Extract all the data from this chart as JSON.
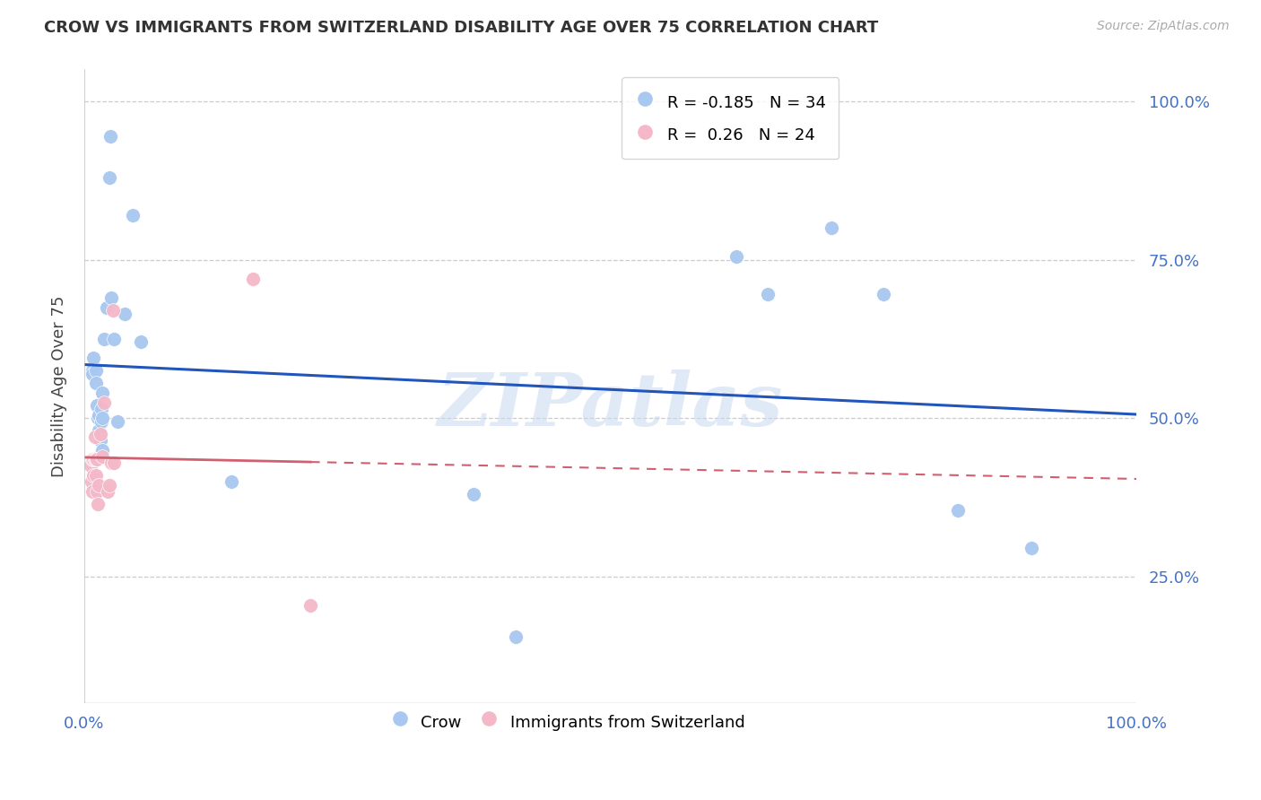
{
  "title": "CROW VS IMMIGRANTS FROM SWITZERLAND DISABILITY AGE OVER 75 CORRELATION CHART",
  "source": "Source: ZipAtlas.com",
  "ylabel": "Disability Age Over 75",
  "crow_x": [
    0.008,
    0.008,
    0.009,
    0.011,
    0.011,
    0.012,
    0.013,
    0.014,
    0.014,
    0.015,
    0.016,
    0.016,
    0.017,
    0.017,
    0.017,
    0.019,
    0.021,
    0.024,
    0.025,
    0.026,
    0.028,
    0.032,
    0.038,
    0.046,
    0.054,
    0.14,
    0.37,
    0.41,
    0.62,
    0.65,
    0.71,
    0.76,
    0.83,
    0.9
  ],
  "crow_y": [
    0.575,
    0.57,
    0.595,
    0.575,
    0.555,
    0.52,
    0.5,
    0.505,
    0.48,
    0.465,
    0.515,
    0.495,
    0.54,
    0.5,
    0.45,
    0.625,
    0.675,
    0.88,
    0.945,
    0.69,
    0.625,
    0.495,
    0.665,
    0.82,
    0.62,
    0.4,
    0.38,
    0.155,
    0.755,
    0.695,
    0.8,
    0.695,
    0.355,
    0.295
  ],
  "swiss_x": [
    0.006,
    0.007,
    0.008,
    0.008,
    0.009,
    0.009,
    0.01,
    0.01,
    0.011,
    0.011,
    0.012,
    0.012,
    0.013,
    0.014,
    0.015,
    0.017,
    0.019,
    0.022,
    0.024,
    0.026,
    0.027,
    0.028,
    0.16,
    0.215
  ],
  "swiss_y": [
    0.425,
    0.4,
    0.435,
    0.385,
    0.435,
    0.41,
    0.435,
    0.47,
    0.435,
    0.41,
    0.435,
    0.385,
    0.365,
    0.395,
    0.475,
    0.44,
    0.525,
    0.385,
    0.395,
    0.43,
    0.67,
    0.43,
    0.72,
    0.205
  ],
  "crow_color": "#a8c8f0",
  "swiss_color": "#f4b8c8",
  "crow_line_color": "#2255bb",
  "swiss_line_color": "#d06070",
  "crow_R": -0.185,
  "crow_N": 34,
  "swiss_R": 0.26,
  "swiss_N": 24,
  "xlim": [
    0.0,
    1.0
  ],
  "ylim": [
    0.05,
    1.05
  ],
  "yticks": [
    0.25,
    0.5,
    0.75,
    1.0
  ],
  "ytick_labels": [
    "25.0%",
    "50.0%",
    "75.0%",
    "100.0%"
  ],
  "background_color": "#ffffff",
  "watermark": "ZIPatlas",
  "watermark_color": "#c8d8f0",
  "scatter_size": 130
}
